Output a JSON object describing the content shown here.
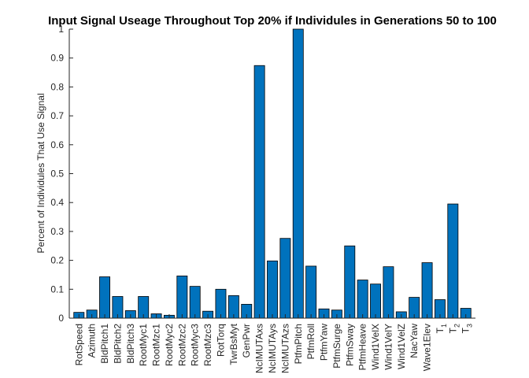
{
  "chart_data": {
    "type": "bar",
    "title": "Input Signal Useage Throughout Top 20% if Individules in Generations 50 to 100",
    "xlabel": "",
    "ylabel": "Percent of Individules That Use Signal",
    "ylim": [
      0,
      1
    ],
    "yticks": [
      0,
      0.1,
      0.2,
      0.3,
      0.4,
      0.5,
      0.6,
      0.7,
      0.8,
      0.9,
      1
    ],
    "categories": [
      {
        "base": "RotSpeed",
        "sub": ""
      },
      {
        "base": "Azimuth",
        "sub": ""
      },
      {
        "base": "BldPitch1",
        "sub": ""
      },
      {
        "base": "BldPitch2",
        "sub": ""
      },
      {
        "base": "BldPitch3",
        "sub": ""
      },
      {
        "base": "RootMyc1",
        "sub": ""
      },
      {
        "base": "RootMzc1",
        "sub": ""
      },
      {
        "base": "RootMyc2",
        "sub": ""
      },
      {
        "base": "RootMzc2",
        "sub": ""
      },
      {
        "base": "RootMyc3",
        "sub": ""
      },
      {
        "base": "RootMzc3",
        "sub": ""
      },
      {
        "base": "RotTorq",
        "sub": ""
      },
      {
        "base": "TwrBsMyt",
        "sub": ""
      },
      {
        "base": "GenPwr",
        "sub": ""
      },
      {
        "base": "NcIMUTAxs",
        "sub": ""
      },
      {
        "base": "NcIMUTAys",
        "sub": ""
      },
      {
        "base": "NcIMUTAzs",
        "sub": ""
      },
      {
        "base": "PtfmPitch",
        "sub": ""
      },
      {
        "base": "PtfmRoll",
        "sub": ""
      },
      {
        "base": "PtfmYaw",
        "sub": ""
      },
      {
        "base": "PtfmSurge",
        "sub": ""
      },
      {
        "base": "PtfmSway",
        "sub": ""
      },
      {
        "base": "PtfmHeave",
        "sub": ""
      },
      {
        "base": "Wind1VelX",
        "sub": ""
      },
      {
        "base": "Wind1VelY",
        "sub": ""
      },
      {
        "base": "Wind1VelZ",
        "sub": ""
      },
      {
        "base": "NacYaw",
        "sub": ""
      },
      {
        "base": "Wave1Elev",
        "sub": ""
      },
      {
        "base": "T",
        "sub": "1"
      },
      {
        "base": "T",
        "sub": "2"
      },
      {
        "base": "T",
        "sub": "3"
      }
    ],
    "values": [
      0.02,
      0.028,
      0.143,
      0.075,
      0.026,
      0.075,
      0.015,
      0.01,
      0.146,
      0.11,
      0.024,
      0.1,
      0.078,
      0.048,
      0.874,
      0.198,
      0.276,
      1.0,
      0.18,
      0.032,
      0.028,
      0.25,
      0.132,
      0.118,
      0.178,
      0.022,
      0.072,
      0.192,
      0.064,
      0.395,
      0.034
    ],
    "bar_color": "#0072BD",
    "edge_color": "#000000",
    "grid": false,
    "legend": "none"
  }
}
